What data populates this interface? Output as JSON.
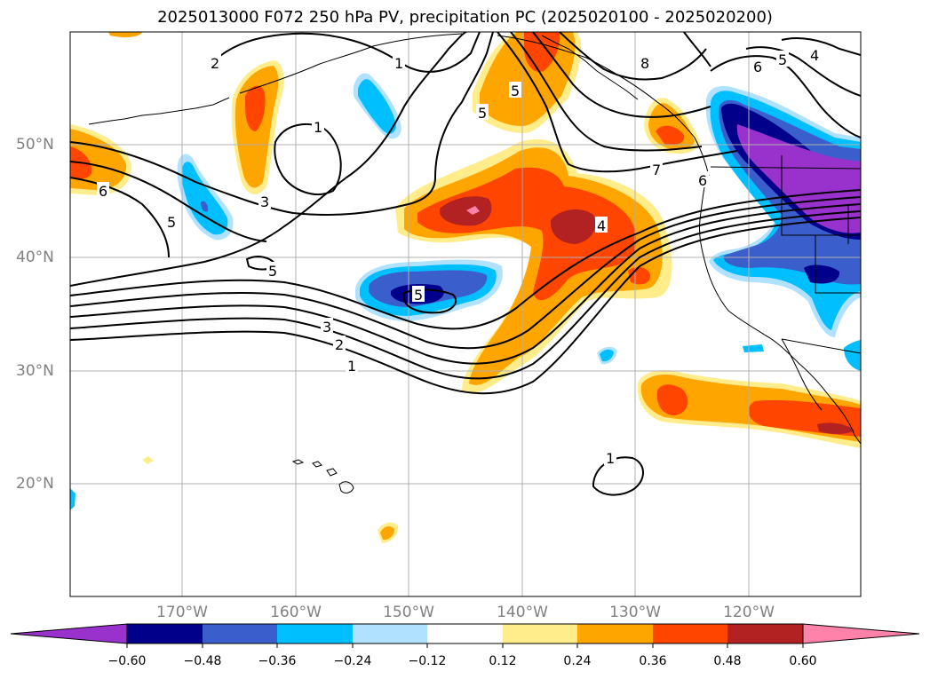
{
  "title": "2025013000 F072 250 hPa PV, precipitation PC (2025020100 - 2025020200)",
  "longitude_labels": [
    "170°W",
    "160°W",
    "150°W",
    "140°W",
    "130°W",
    "120°W"
  ],
  "latitude_labels": [
    "50°N",
    "40°N",
    "30°N",
    "20°N"
  ],
  "colorbar": {
    "tick_labels": [
      "−0.60",
      "−0.48",
      "−0.36",
      "−0.24",
      "−0.12",
      "0.12",
      "0.24",
      "0.36",
      "0.48",
      "0.60"
    ],
    "colors": [
      "#9932cc",
      "#00008b",
      "#3a5fcd",
      "#00bfff",
      "#b0e2ff",
      "#ffffff",
      "#ffec8b",
      "#ffa500",
      "#ff4500",
      "#b22222",
      "#ff82ab"
    ],
    "extend": "both"
  },
  "pv_contour_labels": [
    "2",
    "1",
    "5",
    "8",
    "6",
    "5",
    "4",
    "1",
    "3",
    "5",
    "7",
    "6",
    "6",
    "5",
    "4",
    "5",
    "5",
    "3",
    "2",
    "1",
    "1"
  ],
  "colors": {
    "precip_purple": "#9932cc",
    "precip_navy": "#00008b",
    "precip_royal": "#3a5fcd",
    "precip_cyan": "#00bfff",
    "precip_lightblue": "#b0e2ff",
    "precip_yellow": "#ffec8b",
    "precip_orange": "#ffa500",
    "precip_redorange": "#ff4500",
    "precip_firebrick": "#b22222",
    "precip_pink": "#ff82ab",
    "contour": "#000000",
    "grid": "#b0b0b0",
    "tick_text": "#808080"
  }
}
